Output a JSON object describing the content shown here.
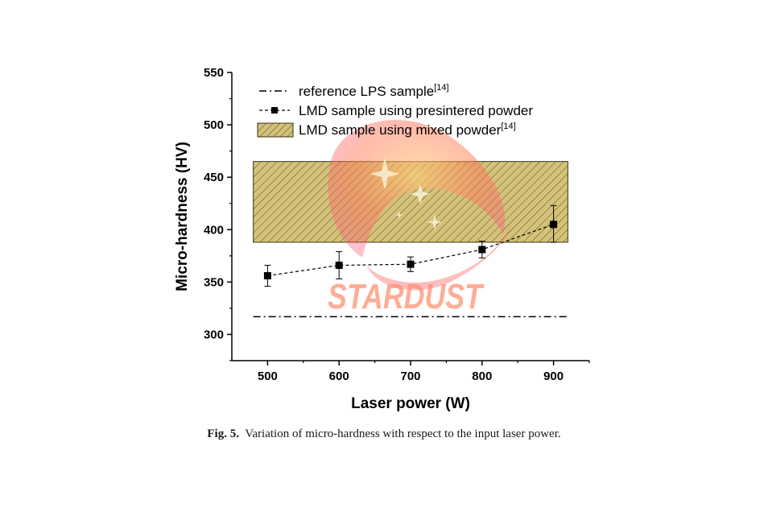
{
  "chart_data": {
    "type": "line",
    "xlabel": "Laser power (W)",
    "ylabel": "Micro-hardness (HV)",
    "xlim": [
      450,
      950
    ],
    "ylim": [
      275,
      550
    ],
    "xticks": [
      "500",
      "600",
      "700",
      "800",
      "900"
    ],
    "yticks": [
      "300",
      "350",
      "400",
      "450",
      "500",
      "550"
    ],
    "legend_placement": "top-left",
    "series": [
      {
        "name": "reference LPS sample",
        "name_ref": "[14]",
        "style": "dash-dot",
        "x": [
          480,
          920
        ],
        "y": [
          317,
          317
        ]
      },
      {
        "name": "LMD sample using presintered powder",
        "style": "dashed-square-markers",
        "x": [
          500,
          600,
          700,
          800,
          900
        ],
        "y": [
          356,
          366,
          367,
          381,
          405
        ],
        "yerr_low": [
          346,
          353,
          360,
          373,
          388
        ],
        "yerr_high": [
          366,
          379,
          374,
          389,
          423
        ]
      },
      {
        "name": "LMD sample using mixed powder",
        "name_ref": "[14]",
        "style": "hatched-band",
        "x": [
          480,
          920
        ],
        "y_low": 388,
        "y_high": 465,
        "color": "#c8b560"
      }
    ]
  },
  "caption": {
    "label": "Fig. 5.",
    "text": "Variation of micro-hardness with respect to the input laser power."
  },
  "watermark": {
    "text": "STARDUST",
    "icon": "planet-stars-logo"
  }
}
